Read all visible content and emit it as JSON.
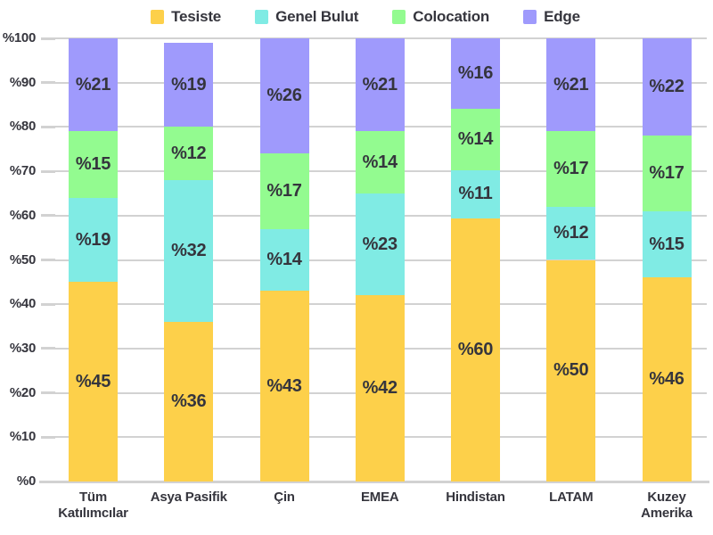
{
  "chart_data": {
    "type": "bar",
    "stacked": true,
    "orientation": "vertical",
    "value_prefix": "%",
    "categories": [
      {
        "label": "Tüm Katılımcılar",
        "lines": [
          "Tüm",
          "Katılımcılar"
        ]
      },
      {
        "label": "Asya Pasifik",
        "lines": [
          "Asya Pasifik"
        ]
      },
      {
        "label": "Çin",
        "lines": [
          "Çin"
        ]
      },
      {
        "label": "EMEA",
        "lines": [
          "EMEA"
        ]
      },
      {
        "label": "Hindistan",
        "lines": [
          "Hindistan"
        ]
      },
      {
        "label": "LATAM",
        "lines": [
          "LATAM"
        ]
      },
      {
        "label": "Kuzey Amerika",
        "lines": [
          "Kuzey",
          "Amerika"
        ]
      }
    ],
    "series": [
      {
        "name": "Tesiste",
        "color": "#FDD04A",
        "values": [
          45,
          36,
          43,
          42,
          60,
          50,
          46
        ]
      },
      {
        "name": "Genel Bulut",
        "color": "#80EBE4",
        "values": [
          19,
          32,
          14,
          23,
          11,
          12,
          15
        ]
      },
      {
        "name": "Colocation",
        "color": "#93FB90",
        "values": [
          15,
          12,
          17,
          14,
          14,
          17,
          17
        ]
      },
      {
        "name": "Edge",
        "color": "#9F9AFC",
        "values": [
          21,
          19,
          26,
          21,
          16,
          21,
          22
        ]
      }
    ],
    "y_axis": {
      "min": 0,
      "max": 100,
      "step": 10,
      "tick_labels": [
        "%0",
        "%10",
        "%20",
        "%30",
        "%40",
        "%50",
        "%60",
        "%70",
        "%80",
        "%90",
        "%100"
      ]
    },
    "grid": true,
    "legend_position": "top",
    "colors": {
      "grid": "#D2D2D2",
      "axis": "#D2D2D2",
      "text": "#35353D",
      "background": "#FFFFFF"
    }
  }
}
